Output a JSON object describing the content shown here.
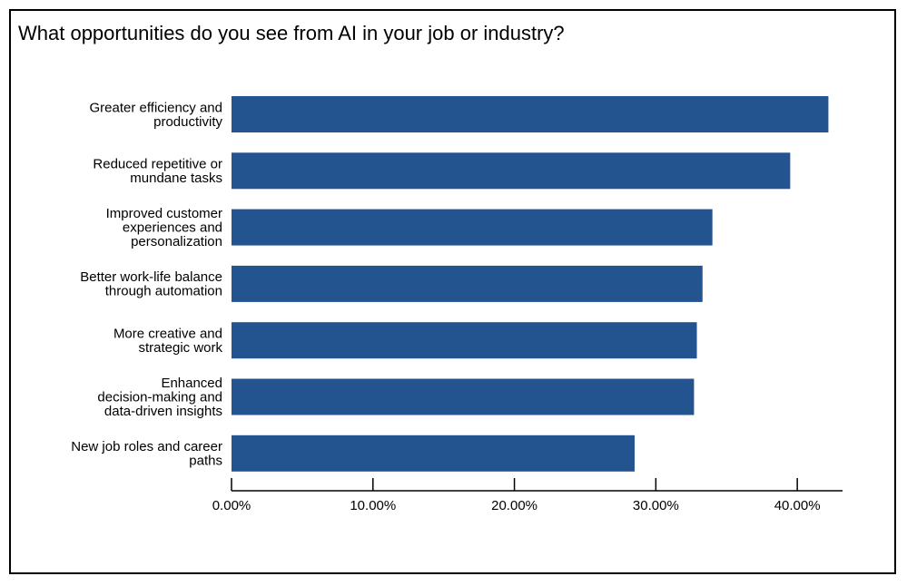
{
  "chart_data": {
    "type": "bar",
    "orientation": "horizontal",
    "title": "What opportunities do you see from AI in your job or industry?",
    "categories": [
      "Greater efficiency and productivity",
      "Reduced repetitive or mundane tasks",
      "Improved customer experiences and personalization",
      "Better work-life balance through automation",
      "More creative and strategic work",
      "Enhanced decision-making and data-driven insights",
      "New job roles and career paths"
    ],
    "category_lines": [
      [
        "Greater efficiency and",
        "productivity"
      ],
      [
        "Reduced repetitive or",
        "mundane tasks"
      ],
      [
        "Improved customer",
        "experiences and",
        "personalization"
      ],
      [
        "Better work-life balance",
        "through automation"
      ],
      [
        "More creative and",
        "strategic work"
      ],
      [
        "Enhanced",
        "decision-making and",
        "data-driven insights"
      ],
      [
        "New job roles and career",
        "paths"
      ]
    ],
    "values": [
      42.2,
      39.5,
      34.0,
      33.3,
      32.9,
      32.7,
      28.5
    ],
    "xlim": [
      0,
      43.2
    ],
    "xticks": [
      0,
      10,
      20,
      30,
      40
    ],
    "xtick_labels": [
      "0.00%",
      "10.00%",
      "20.00%",
      "30.00%",
      "40.00%"
    ],
    "xlabel": "",
    "ylabel": "",
    "grid": false,
    "bar_color": "#24548f"
  }
}
